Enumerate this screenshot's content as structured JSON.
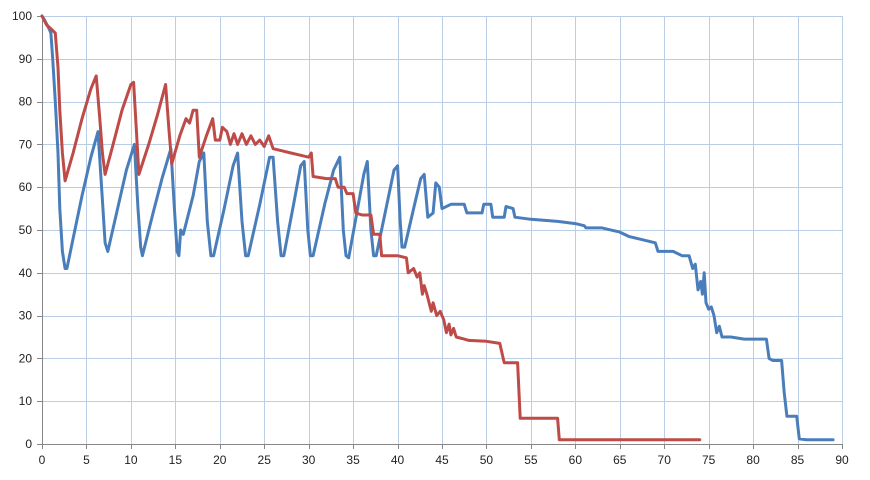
{
  "chart_data": {
    "type": "line",
    "title": "",
    "xlabel": "",
    "ylabel": "",
    "xlim": [
      0,
      90
    ],
    "ylim": [
      0,
      100
    ],
    "x_ticks": [
      "0",
      "5",
      "10",
      "15",
      "20",
      "25",
      "30",
      "35",
      "40",
      "45",
      "50",
      "55",
      "60",
      "65",
      "70",
      "75",
      "80",
      "85",
      "90"
    ],
    "y_ticks": [
      "0",
      "10",
      "20",
      "30",
      "40",
      "50",
      "60",
      "70",
      "80",
      "90",
      "100"
    ],
    "grid": true,
    "legend": "none",
    "series": [
      {
        "color": "#4a7ebb",
        "points": [
          [
            0,
            100
          ],
          [
            0.3,
            99
          ],
          [
            0.8,
            97
          ],
          [
            1.0,
            96
          ],
          [
            1.2,
            90
          ],
          [
            1.5,
            80
          ],
          [
            1.8,
            68
          ],
          [
            2.0,
            55
          ],
          [
            2.3,
            45
          ],
          [
            2.6,
            41
          ],
          [
            2.8,
            41
          ],
          [
            3.5,
            48
          ],
          [
            4.5,
            58
          ],
          [
            5.5,
            67
          ],
          [
            6.3,
            73
          ],
          [
            6.8,
            57
          ],
          [
            7.1,
            47
          ],
          [
            7.4,
            45
          ],
          [
            8.5,
            55
          ],
          [
            9.5,
            64
          ],
          [
            10.4,
            70
          ],
          [
            10.8,
            55
          ],
          [
            11.1,
            46
          ],
          [
            11.3,
            44
          ],
          [
            12.5,
            54
          ],
          [
            13.5,
            62
          ],
          [
            14.5,
            69
          ],
          [
            14.9,
            55
          ],
          [
            15.2,
            45
          ],
          [
            15.4,
            44
          ],
          [
            15.6,
            50
          ],
          [
            15.9,
            49
          ],
          [
            17.0,
            58
          ],
          [
            17.7,
            66
          ],
          [
            18.2,
            68
          ],
          [
            18.6,
            52
          ],
          [
            19.0,
            44
          ],
          [
            19.3,
            44
          ],
          [
            20.5,
            55
          ],
          [
            21.5,
            65
          ],
          [
            22.0,
            68
          ],
          [
            22.5,
            52
          ],
          [
            22.9,
            44
          ],
          [
            23.2,
            44
          ],
          [
            24.5,
            56
          ],
          [
            25.6,
            67
          ],
          [
            26.0,
            67
          ],
          [
            26.5,
            52
          ],
          [
            26.9,
            44
          ],
          [
            27.2,
            44
          ],
          [
            28.3,
            56
          ],
          [
            29.1,
            65
          ],
          [
            29.5,
            66
          ],
          [
            29.9,
            50
          ],
          [
            30.2,
            44
          ],
          [
            30.5,
            44
          ],
          [
            31.8,
            56
          ],
          [
            32.8,
            64
          ],
          [
            33.5,
            67
          ],
          [
            33.9,
            50
          ],
          [
            34.2,
            44
          ],
          [
            34.5,
            43.5
          ],
          [
            35.5,
            55
          ],
          [
            36.2,
            63
          ],
          [
            36.6,
            66
          ],
          [
            37.0,
            50
          ],
          [
            37.3,
            44
          ],
          [
            37.6,
            44
          ],
          [
            38.8,
            56
          ],
          [
            39.6,
            64
          ],
          [
            40.0,
            65
          ],
          [
            40.3,
            52
          ],
          [
            40.5,
            46
          ],
          [
            40.8,
            46
          ],
          [
            41.8,
            55
          ],
          [
            42.6,
            62
          ],
          [
            43.0,
            63
          ],
          [
            43.4,
            53
          ],
          [
            44.0,
            54
          ],
          [
            44.3,
            61
          ],
          [
            44.7,
            60
          ],
          [
            45.0,
            55
          ],
          [
            46.0,
            56
          ],
          [
            47.5,
            56
          ],
          [
            47.8,
            54
          ],
          [
            49.5,
            54
          ],
          [
            49.7,
            56
          ],
          [
            50.5,
            56
          ],
          [
            50.7,
            53
          ],
          [
            52.0,
            53
          ],
          [
            52.2,
            55.5
          ],
          [
            53.0,
            55
          ],
          [
            53.2,
            53
          ],
          [
            55,
            52.5
          ],
          [
            58,
            52
          ],
          [
            60,
            51.5
          ],
          [
            61,
            51
          ],
          [
            61.2,
            50.5
          ],
          [
            63,
            50.5
          ],
          [
            65,
            49.5
          ],
          [
            66,
            48.5
          ],
          [
            67,
            48
          ],
          [
            69,
            47
          ],
          [
            69.3,
            45
          ],
          [
            71,
            45
          ],
          [
            72,
            44
          ],
          [
            72.8,
            44
          ],
          [
            73.2,
            41
          ],
          [
            73.5,
            42
          ],
          [
            73.8,
            36
          ],
          [
            74.1,
            38
          ],
          [
            74.3,
            35
          ],
          [
            74.5,
            40
          ],
          [
            74.7,
            33
          ],
          [
            75,
            31.5
          ],
          [
            75.3,
            32
          ],
          [
            75.6,
            30
          ],
          [
            75.9,
            26
          ],
          [
            76.2,
            27.5
          ],
          [
            76.5,
            25
          ],
          [
            77.5,
            25
          ],
          [
            79,
            24.5
          ],
          [
            80.5,
            24.5
          ],
          [
            81.5,
            24.5
          ],
          [
            81.8,
            20
          ],
          [
            82.2,
            19.5
          ],
          [
            83.2,
            19.5
          ],
          [
            83.5,
            12
          ],
          [
            83.8,
            6.5
          ],
          [
            84.5,
            6.5
          ],
          [
            84.9,
            6.5
          ],
          [
            85.2,
            1.2
          ],
          [
            86,
            1
          ],
          [
            89,
            1
          ]
        ]
      },
      {
        "color": "#be4b48",
        "points": [
          [
            0,
            100
          ],
          [
            0.5,
            98
          ],
          [
            1.0,
            97
          ],
          [
            1.5,
            96
          ],
          [
            1.8,
            88
          ],
          [
            2.0,
            78
          ],
          [
            2.3,
            68
          ],
          [
            2.6,
            61.5
          ],
          [
            3.5,
            68
          ],
          [
            4.5,
            76
          ],
          [
            5.5,
            83
          ],
          [
            6.1,
            86
          ],
          [
            6.5,
            76
          ],
          [
            6.8,
            68
          ],
          [
            7.1,
            63
          ],
          [
            8.0,
            70
          ],
          [
            9.0,
            78
          ],
          [
            10.0,
            84
          ],
          [
            10.3,
            84.5
          ],
          [
            10.6,
            74
          ],
          [
            10.9,
            63
          ],
          [
            12.0,
            70
          ],
          [
            13.0,
            77
          ],
          [
            13.9,
            84
          ],
          [
            14.3,
            73
          ],
          [
            14.6,
            65.5
          ],
          [
            15.5,
            72
          ],
          [
            16.2,
            76
          ],
          [
            16.6,
            75
          ],
          [
            17.0,
            78
          ],
          [
            17.4,
            78
          ],
          [
            17.7,
            67
          ],
          [
            18.5,
            72
          ],
          [
            19.2,
            76
          ],
          [
            19.5,
            71
          ],
          [
            20.0,
            71
          ],
          [
            20.3,
            74
          ],
          [
            20.8,
            73
          ],
          [
            21.2,
            70
          ],
          [
            21.6,
            72.5
          ],
          [
            22.0,
            70
          ],
          [
            22.5,
            72.5
          ],
          [
            23.0,
            70
          ],
          [
            23.5,
            72
          ],
          [
            24.0,
            70
          ],
          [
            24.5,
            71
          ],
          [
            25.0,
            69.5
          ],
          [
            25.5,
            72
          ],
          [
            26.0,
            69
          ],
          [
            27.0,
            68.5
          ],
          [
            28.0,
            68
          ],
          [
            29.0,
            67.5
          ],
          [
            30.0,
            67
          ],
          [
            30.3,
            68
          ],
          [
            30.5,
            62.5
          ],
          [
            32,
            62
          ],
          [
            33,
            62
          ],
          [
            33.3,
            60
          ],
          [
            34.0,
            60
          ],
          [
            34.3,
            58.5
          ],
          [
            35.0,
            58.5
          ],
          [
            35.3,
            54
          ],
          [
            36.0,
            53.5
          ],
          [
            37.0,
            53.5
          ],
          [
            37.3,
            49
          ],
          [
            38.0,
            49
          ],
          [
            38.2,
            44
          ],
          [
            39.0,
            44
          ],
          [
            40.0,
            44
          ],
          [
            41.0,
            43.5
          ],
          [
            41.2,
            40
          ],
          [
            41.8,
            41
          ],
          [
            42.2,
            39
          ],
          [
            42.5,
            40
          ],
          [
            42.8,
            35
          ],
          [
            43.0,
            37
          ],
          [
            43.3,
            35
          ],
          [
            43.8,
            31
          ],
          [
            44.0,
            33
          ],
          [
            44.4,
            30
          ],
          [
            44.8,
            31
          ],
          [
            45.2,
            29
          ],
          [
            45.5,
            26
          ],
          [
            45.8,
            28
          ],
          [
            46.0,
            25.5
          ],
          [
            46.3,
            27
          ],
          [
            46.6,
            25
          ],
          [
            47.5,
            24.5
          ],
          [
            48.0,
            24.2
          ],
          [
            50.0,
            24
          ],
          [
            51.5,
            23.5
          ],
          [
            52.0,
            19
          ],
          [
            53.5,
            19
          ],
          [
            53.8,
            6
          ],
          [
            55.0,
            6
          ],
          [
            58.0,
            6
          ],
          [
            58.2,
            1
          ],
          [
            62.0,
            1
          ],
          [
            66.0,
            1
          ],
          [
            70.0,
            1
          ],
          [
            74.0,
            1
          ]
        ]
      }
    ]
  }
}
